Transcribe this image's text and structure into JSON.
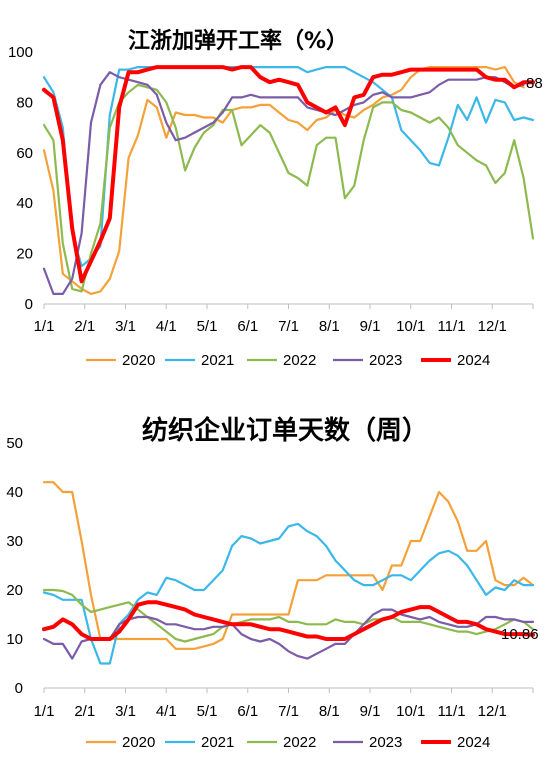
{
  "chart_data": [
    {
      "type": "line",
      "title": "江浙加弹开工率（%）",
      "xlabel": "",
      "ylabel": "",
      "ylim": [
        0,
        100
      ],
      "yticks": [
        0,
        20,
        40,
        60,
        80,
        100
      ],
      "x_tick_labels": [
        "1/1",
        "2/1",
        "3/1",
        "4/1",
        "5/1",
        "6/1",
        "7/1",
        "8/1",
        "9/1",
        "10/1",
        "11/1",
        "12/1"
      ],
      "x_range_weeks": [
        0,
        52
      ],
      "legend_position": "bottom",
      "end_label": "88",
      "series": [
        {
          "name": "2020",
          "color": "#F4A13A",
          "stroke": 2.2,
          "values": [
            61,
            45,
            12,
            9,
            6,
            4,
            5,
            10,
            21,
            58,
            67,
            81,
            78,
            66,
            76,
            75,
            75,
            74,
            74,
            72,
            77,
            78,
            78,
            79,
            79,
            76,
            73,
            72,
            69,
            73,
            74,
            77,
            75,
            74,
            77,
            79,
            82,
            83,
            85,
            90,
            93,
            94,
            94,
            94,
            94,
            94,
            94,
            94,
            93,
            94,
            88,
            86
          ]
        },
        {
          "name": "2021",
          "color": "#3BB8E8",
          "stroke": 2.2,
          "values": [
            90,
            84,
            70,
            28,
            15,
            18,
            23,
            75,
            93,
            93,
            94,
            94,
            94,
            94,
            94,
            94,
            94,
            94,
            94,
            94,
            94,
            94,
            94,
            94,
            94,
            94,
            94,
            94,
            92,
            93,
            94,
            94,
            94,
            92,
            90,
            88,
            85,
            82,
            69,
            65,
            61,
            56,
            55,
            66,
            79,
            73,
            82,
            72,
            81,
            80,
            73,
            74,
            73
          ]
        },
        {
          "name": "2022",
          "color": "#8DBA4F",
          "stroke": 2.2,
          "values": [
            71,
            65,
            24,
            6,
            5,
            20,
            32,
            70,
            80,
            84,
            87,
            86,
            85,
            80,
            70,
            53,
            62,
            68,
            71,
            77,
            77,
            63,
            67,
            71,
            68,
            60,
            52,
            50,
            47,
            63,
            66,
            66,
            42,
            47,
            65,
            78,
            80,
            80,
            77,
            76,
            74,
            72,
            74,
            70,
            63,
            60,
            57,
            55,
            48,
            52,
            65,
            50,
            26
          ]
        },
        {
          "name": "2023",
          "color": "#7B5CA8",
          "stroke": 2.2,
          "values": [
            14,
            4,
            4,
            10,
            28,
            72,
            87,
            92,
            90,
            89,
            88,
            87,
            83,
            72,
            65,
            66,
            68,
            70,
            72,
            76,
            82,
            82,
            83,
            82,
            82,
            82,
            82,
            82,
            78,
            77,
            76,
            75,
            77,
            79,
            80,
            83,
            84,
            82,
            82,
            82,
            83,
            84,
            87,
            89,
            89,
            89,
            89,
            90,
            90,
            88,
            86,
            87
          ]
        },
        {
          "name": "2024",
          "color": "#FF0000",
          "stroke": 4,
          "values": [
            85,
            82,
            65,
            30,
            9,
            17,
            25,
            34,
            78,
            92,
            92,
            93,
            94,
            94,
            94,
            94,
            94,
            94,
            94,
            94,
            93,
            94,
            94,
            90,
            88,
            89,
            88,
            87,
            80,
            78,
            76,
            78,
            71,
            82,
            83,
            90,
            91,
            91,
            92,
            93,
            93,
            93,
            93,
            93,
            93,
            93,
            93,
            90,
            89,
            89,
            86,
            88,
            88
          ]
        }
      ]
    },
    {
      "type": "line",
      "title": "纺织企业订单天数（周）",
      "xlabel": "",
      "ylabel": "",
      "ylim": [
        0,
        50
      ],
      "yticks": [
        0,
        10,
        20,
        30,
        40,
        50
      ],
      "x_tick_labels": [
        "1/1",
        "2/1",
        "3/1",
        "4/1",
        "5/1",
        "6/1",
        "7/1",
        "8/1",
        "9/1",
        "10/1",
        "11/1",
        "12/1"
      ],
      "x_range_weeks": [
        0,
        52
      ],
      "legend_position": "bottom",
      "end_label": "10.86",
      "series": [
        {
          "name": "2020",
          "color": "#F4A13A",
          "stroke": 2.2,
          "values": [
            42,
            42,
            40,
            40,
            30,
            19,
            10,
            10,
            10,
            10,
            10,
            10,
            10,
            10,
            8,
            8,
            8,
            8.5,
            9,
            10,
            15,
            15,
            15,
            15,
            15,
            15,
            15,
            22,
            22,
            22,
            23,
            23,
            23,
            23,
            23,
            23,
            20,
            25,
            25,
            30,
            30,
            35,
            40,
            38,
            34,
            28,
            28,
            30,
            22,
            21,
            21,
            22.5,
            21
          ]
        },
        {
          "name": "2021",
          "color": "#3BB8E8",
          "stroke": 2.2,
          "values": [
            19.5,
            19,
            18,
            18,
            18,
            10,
            5,
            5,
            13,
            15,
            18,
            19.5,
            19,
            22.5,
            22,
            21,
            20,
            20,
            22,
            24,
            29,
            31,
            30.5,
            29.5,
            30,
            30.5,
            33,
            33.5,
            32,
            31,
            29,
            26,
            24,
            22,
            21,
            21,
            22,
            23,
            23,
            22,
            24,
            26,
            27.5,
            28,
            27,
            25,
            22,
            19,
            20.5,
            20,
            22,
            21,
            21
          ]
        },
        {
          "name": "2022",
          "color": "#8DBA4F",
          "stroke": 2.2,
          "values": [
            20,
            20,
            19.8,
            19,
            17,
            15.5,
            16,
            16.5,
            17,
            17.5,
            16,
            14.5,
            13,
            11.5,
            10,
            9.5,
            10,
            10.5,
            11,
            12.5,
            13,
            13.5,
            14,
            14,
            14,
            14.5,
            13.5,
            13.5,
            13,
            13,
            13,
            14,
            13.5,
            13.5,
            13,
            14,
            14,
            14.5,
            13.5,
            13.5,
            13.5,
            13,
            12.5,
            12,
            11.5,
            11.5,
            11,
            11.5,
            12,
            13,
            14,
            13.5,
            12
          ]
        },
        {
          "name": "2023",
          "color": "#7B5CA8",
          "stroke": 2.2,
          "values": [
            10,
            9,
            9,
            6,
            9.5,
            10,
            10,
            10,
            13,
            14,
            14.5,
            14.5,
            14,
            13,
            13,
            12.5,
            12,
            12,
            12.5,
            12.5,
            13,
            11,
            10,
            9.5,
            10,
            9,
            7.5,
            6.5,
            6,
            7,
            8,
            9,
            9,
            11,
            13,
            15,
            16,
            16,
            15,
            14.5,
            14,
            14.5,
            13.5,
            13,
            12.5,
            12.5,
            13,
            14.5,
            14.5,
            14,
            14,
            13.5,
            13.5
          ]
        },
        {
          "name": "2024",
          "color": "#FF0000",
          "stroke": 4,
          "values": [
            12,
            12.5,
            14,
            13,
            11,
            10,
            10,
            10,
            11.5,
            14,
            17,
            17.5,
            17.5,
            17,
            16.5,
            16,
            15,
            14.5,
            14,
            13.5,
            13,
            13,
            13,
            12.5,
            12,
            12,
            11.5,
            11,
            10.5,
            10.5,
            10,
            10,
            10,
            11,
            12,
            13,
            14,
            14.5,
            15.5,
            16,
            16.5,
            16.5,
            15.5,
            14.5,
            13.5,
            13.5,
            13,
            12,
            11.5,
            11,
            11,
            11,
            10.86
          ]
        }
      ]
    }
  ]
}
